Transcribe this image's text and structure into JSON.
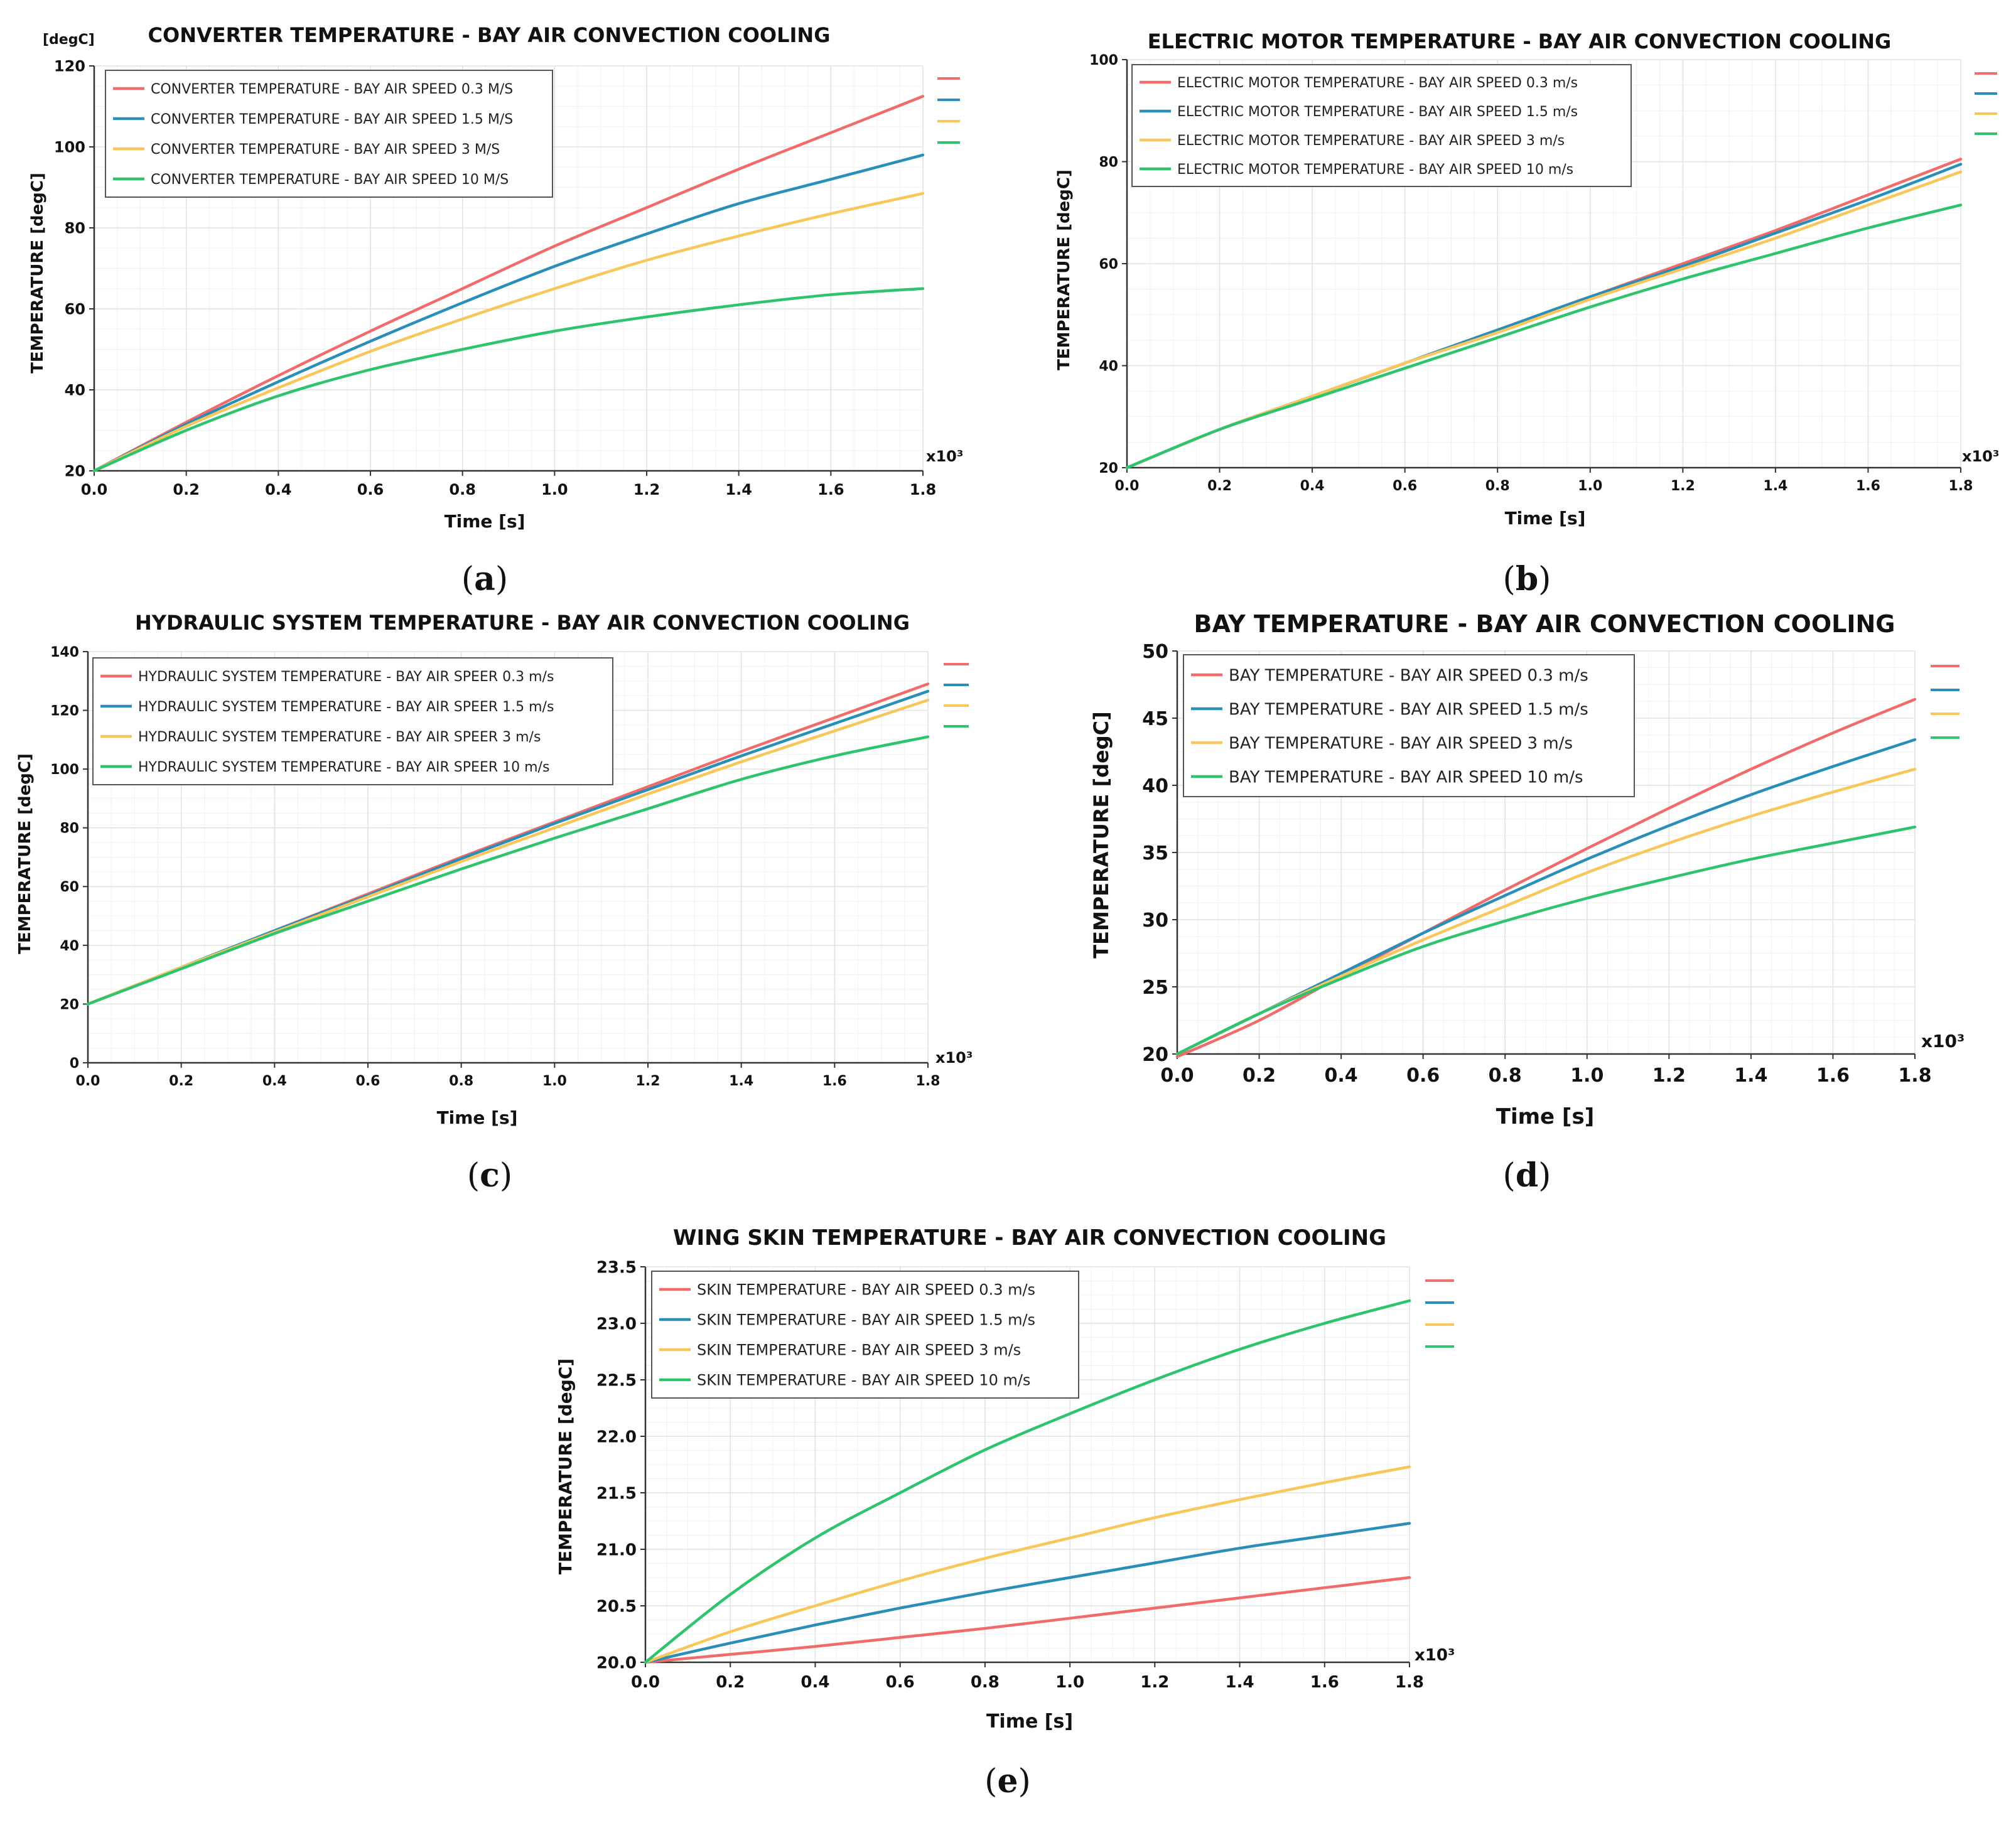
{
  "figure": {
    "panels": [
      {
        "id": "a",
        "caption": "(a)",
        "letter": "a"
      },
      {
        "id": "b",
        "caption": "(b)",
        "letter": "b"
      },
      {
        "id": "c",
        "caption": "(c)",
        "letter": "c"
      },
      {
        "id": "d",
        "caption": "(d)",
        "letter": "d"
      },
      {
        "id": "e",
        "caption": "(e)",
        "letter": "e"
      }
    ]
  },
  "colors": {
    "speed_0_3": "#f26b6b",
    "speed_1_5": "#2a8fb8",
    "speed_3": "#f9c65a",
    "speed_10": "#2ec46d",
    "grid": "#e2e2e2",
    "axis": "#333333"
  },
  "chart_data": [
    {
      "id": "a",
      "type": "line",
      "title": "CONVERTER TEMPERATURE - BAY AIR CONVECTION COOLING",
      "xlabel": "Time [s]",
      "ylabel": "TEMPERATURE [degC]",
      "y_unit_label": "[degC]",
      "x_multiplier_label": "x10³",
      "xlim": [
        0,
        1.8
      ],
      "ylim": [
        20,
        120
      ],
      "xticks": [
        "0.0",
        "0.2",
        "0.4",
        "0.6",
        "0.8",
        "1.0",
        "1.2",
        "1.4",
        "1.6",
        "1.8"
      ],
      "yticks": [
        "20",
        "40",
        "60",
        "80",
        "100",
        "120"
      ],
      "x": [
        0,
        0.2,
        0.4,
        0.6,
        0.8,
        1.0,
        1.2,
        1.4,
        1.6,
        1.8
      ],
      "series": [
        {
          "name": "CONVERTER TEMPERATURE - BAY AIR SPEED 0.3 M/S",
          "color_key": "speed_0_3",
          "values": [
            20,
            32,
            43.5,
            54.5,
            65,
            75.5,
            85,
            94.5,
            103.5,
            112.5
          ]
        },
        {
          "name": "CONVERTER TEMPERATURE - BAY AIR SPEED 1.5 M/S",
          "color_key": "speed_1_5",
          "values": [
            20,
            31.5,
            42,
            52,
            61.5,
            70.5,
            78.5,
            86,
            92,
            98
          ]
        },
        {
          "name": "CONVERTER TEMPERATURE - BAY AIR SPEED 3 M/S",
          "color_key": "speed_3",
          "values": [
            20,
            31,
            40.5,
            49.5,
            57.5,
            65,
            72,
            78,
            83.5,
            88.5
          ]
        },
        {
          "name": "CONVERTER TEMPERATURE - BAY AIR SPEED 10 M/S",
          "color_key": "speed_10",
          "values": [
            20,
            30,
            38.5,
            45,
            50,
            54.5,
            58,
            61,
            63.5,
            65
          ]
        }
      ]
    },
    {
      "id": "b",
      "type": "line",
      "title": "ELECTRIC MOTOR  TEMPERATURE - BAY AIR CONVECTION COOLING",
      "xlabel": "Time [s]",
      "ylabel": "TEMPERATURE [degC]",
      "y_unit_label": "",
      "x_multiplier_label": "x10³",
      "xlim": [
        0,
        1.8
      ],
      "ylim": [
        20,
        100
      ],
      "xticks": [
        "0.0",
        "0.2",
        "0.4",
        "0.6",
        "0.8",
        "1.0",
        "1.2",
        "1.4",
        "1.6",
        "1.8"
      ],
      "yticks": [
        "20",
        "40",
        "60",
        "80",
        "100"
      ],
      "x": [
        0,
        0.2,
        0.4,
        0.6,
        0.8,
        1.0,
        1.2,
        1.4,
        1.6,
        1.8
      ],
      "series": [
        {
          "name": "ELECTRIC MOTOR TEMPERATURE  - BAY AIR SPEED 0.3 m/s",
          "color_key": "speed_0_3",
          "values": [
            20,
            27.5,
            34,
            40.5,
            47,
            53.5,
            60,
            66.5,
            73.5,
            80.5
          ]
        },
        {
          "name": "ELECTRIC MOTOR TEMPERATURE  - BAY AIR SPEED 1.5 m/s",
          "color_key": "speed_1_5",
          "values": [
            20,
            27.5,
            34,
            40.5,
            47,
            53.5,
            59.5,
            66,
            72.5,
            79.5
          ]
        },
        {
          "name": "ELECTRIC MOTOR TEMPERATURE  - BAY AIR SPEED 3 m/s",
          "color_key": "speed_3",
          "values": [
            20,
            27.5,
            34,
            40.5,
            46.5,
            53,
            59,
            65,
            71.5,
            78
          ]
        },
        {
          "name": "ELECTRIC MOTOR TEMPERATURE  - BAY AIR SPEED 10 m/s",
          "color_key": "speed_10",
          "values": [
            20,
            27.5,
            33.5,
            39.5,
            45.5,
            51.5,
            57,
            62,
            67,
            71.5
          ]
        }
      ]
    },
    {
      "id": "c",
      "type": "line",
      "title": "HYDRAULIC SYSTEM TEMPERATURE - BAY AIR CONVECTION COOLING",
      "xlabel": "Time [s]",
      "ylabel": "TEMPERATURE [degC]",
      "y_unit_label": "",
      "x_multiplier_label": "x10³",
      "xlim": [
        0,
        1.8
      ],
      "ylim": [
        0,
        140
      ],
      "xticks": [
        "0.0",
        "0.2",
        "0.4",
        "0.6",
        "0.8",
        "1.0",
        "1.2",
        "1.4",
        "1.6",
        "1.8"
      ],
      "yticks": [
        "0",
        "20",
        "40",
        "60",
        "80",
        "100",
        "120",
        "140"
      ],
      "x": [
        0,
        0.2,
        0.4,
        0.6,
        0.8,
        1.0,
        1.2,
        1.4,
        1.6,
        1.8
      ],
      "series": [
        {
          "name": "HYDRAULIC SYSTEM TEMPERATURE - BAY AIR SPEER 0.3 m/s",
          "color_key": "speed_0_3",
          "values": [
            20,
            32.5,
            45,
            57.5,
            70,
            82,
            94,
            106,
            117.5,
            129
          ]
        },
        {
          "name": "HYDRAULIC SYSTEM TEMPERATURE - BAY AIR SPEER 1.5 m/s",
          "color_key": "speed_1_5",
          "values": [
            20,
            32.5,
            45,
            57,
            69.5,
            81.5,
            93,
            104.5,
            115.5,
            126.5
          ]
        },
        {
          "name": "HYDRAULIC SYSTEM TEMPERATURE - BAY AIR SPEER 3 m/s",
          "color_key": "speed_3",
          "values": [
            20,
            32.5,
            44.5,
            56.5,
            68.5,
            80,
            91.5,
            102.5,
            113,
            123.5
          ]
        },
        {
          "name": "HYDRAULIC SYSTEM TEMPERATURE - BAY AIR SPEER 10 m/s",
          "color_key": "speed_10",
          "values": [
            20,
            32,
            44,
            55,
            66,
            76.5,
            86.5,
            96.5,
            104.5,
            111
          ]
        }
      ]
    },
    {
      "id": "d",
      "type": "line",
      "title": "BAY TEMPERATURE - BAY AIR CONVECTION COOLING",
      "xlabel": "Time [s]",
      "ylabel": "TEMPERATURE [degC]",
      "y_unit_label": "",
      "x_multiplier_label": "x10³",
      "xlim": [
        0,
        1.8
      ],
      "ylim": [
        20,
        50
      ],
      "xticks": [
        "0.0",
        "0.2",
        "0.4",
        "0.6",
        "0.8",
        "1.0",
        "1.2",
        "1.4",
        "1.6",
        "1.8"
      ],
      "yticks": [
        "20",
        "25",
        "30",
        "35",
        "40",
        "45",
        "50"
      ],
      "x": [
        0,
        0.2,
        0.4,
        0.6,
        0.8,
        1.0,
        1.2,
        1.4,
        1.6,
        1.8
      ],
      "series": [
        {
          "name": "BAY TEMPERATURE - BAY AIR SPEED 0.3 m/s",
          "color_key": "speed_0_3",
          "values": [
            19.8,
            22.5,
            25.8,
            29,
            32.2,
            35.3,
            38.3,
            41.2,
            43.9,
            46.4
          ]
        },
        {
          "name": "BAY TEMPERATURE - BAY AIR SPEED 1.5 m/s",
          "color_key": "speed_1_5",
          "values": [
            20,
            23,
            26,
            29,
            31.8,
            34.5,
            37,
            39.3,
            41.4,
            43.4
          ]
        },
        {
          "name": "BAY TEMPERATURE - BAY AIR SPEED 3 m/s",
          "color_key": "speed_3",
          "values": [
            20,
            23,
            25.8,
            28.5,
            31,
            33.5,
            35.7,
            37.7,
            39.5,
            41.2
          ]
        },
        {
          "name": "BAY TEMPERATURE - BAY AIR SPEED 10 m/s",
          "color_key": "speed_10",
          "values": [
            20,
            23,
            25.6,
            28,
            29.9,
            31.6,
            33.1,
            34.5,
            35.7,
            36.9
          ]
        }
      ]
    },
    {
      "id": "e",
      "type": "line",
      "title": "WING SKIN TEMPERATURE - BAY AIR CONVECTION COOLING",
      "xlabel": "Time [s]",
      "ylabel": "TEMPERATURE [degC]",
      "y_unit_label": "",
      "x_multiplier_label": "x10³",
      "xlim": [
        0,
        1.8
      ],
      "ylim": [
        20,
        23.5
      ],
      "xticks": [
        "0.0",
        "0.2",
        "0.4",
        "0.6",
        "0.8",
        "1.0",
        "1.2",
        "1.4",
        "1.6",
        "1.8"
      ],
      "yticks": [
        "20.0",
        "20.5",
        "21.0",
        "21.5",
        "22.0",
        "22.5",
        "23.0",
        "23.5"
      ],
      "x": [
        0,
        0.2,
        0.4,
        0.6,
        0.8,
        1.0,
        1.2,
        1.4,
        1.6,
        1.8
      ],
      "series": [
        {
          "name": "SKIN TEMPERATURE - BAY AIR SPEED 0.3 m/s",
          "color_key": "speed_0_3",
          "values": [
            20,
            20.07,
            20.14,
            20.22,
            20.3,
            20.39,
            20.48,
            20.57,
            20.66,
            20.75
          ]
        },
        {
          "name": "SKIN TEMPERATURE - BAY AIR SPEED 1.5 m/s",
          "color_key": "speed_1_5",
          "values": [
            20,
            20.17,
            20.33,
            20.48,
            20.62,
            20.75,
            20.88,
            21.01,
            21.12,
            21.23
          ]
        },
        {
          "name": "SKIN TEMPERATURE - BAY AIR SPEED 3 m/s",
          "color_key": "speed_3",
          "values": [
            20,
            20.27,
            20.5,
            20.72,
            20.92,
            21.1,
            21.28,
            21.44,
            21.59,
            21.73
          ]
        },
        {
          "name": "SKIN TEMPERATURE - BAY AIR SPEED 10 m/s",
          "color_key": "speed_10",
          "values": [
            20,
            20.6,
            21.1,
            21.5,
            21.88,
            22.2,
            22.5,
            22.77,
            23.0,
            23.2
          ]
        }
      ]
    }
  ]
}
